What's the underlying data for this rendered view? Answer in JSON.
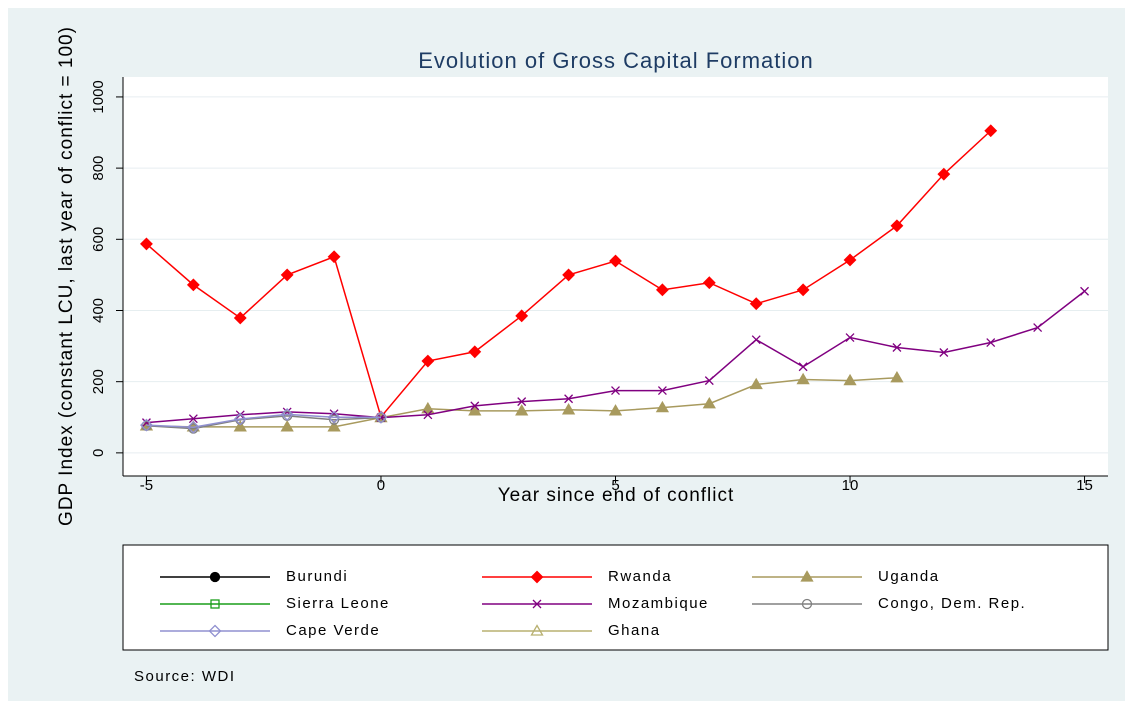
{
  "chart_data": {
    "type": "line",
    "title": "Evolution of Gross Capital Formation",
    "x_label": "Year since end of conflict",
    "y_label": "GDP Index (constant LCU, last year of conflict = 100)",
    "note": "Source: WDI",
    "x": [
      -5,
      -4,
      -3,
      -2,
      -1,
      0,
      1,
      2,
      3,
      4,
      5,
      6,
      7,
      8,
      9,
      10,
      11,
      12,
      13,
      14,
      15
    ],
    "xlim": [
      -5.5,
      15.5
    ],
    "xticks": [
      -5,
      0,
      5,
      10,
      15
    ],
    "ylim": [
      -65,
      1056
    ],
    "yticks": [
      0,
      200,
      400,
      600,
      800,
      1000
    ],
    "grid": true,
    "series": [
      {
        "name": "Burundi",
        "color": "#000000",
        "marker": "circle-filled",
        "values": [
          null,
          null,
          null,
          null,
          null,
          null,
          null,
          null,
          null,
          null,
          null,
          null,
          null,
          null,
          null,
          null,
          null,
          null,
          null,
          null,
          null
        ]
      },
      {
        "name": "Rwanda",
        "color": "#ff0000",
        "marker": "diamond-filled",
        "values": [
          587,
          472,
          379,
          500,
          551,
          101,
          258,
          284,
          385,
          500,
          539,
          458,
          478,
          419,
          458,
          542,
          638,
          783,
          905,
          null,
          null
        ]
      },
      {
        "name": "Uganda",
        "color": "#a89a5e",
        "marker": "triangle-filled",
        "values": [
          76,
          73,
          73,
          73,
          73,
          99,
          124,
          118,
          118,
          121,
          118,
          127,
          138,
          192,
          206,
          203,
          211,
          null,
          null,
          null,
          null
        ]
      },
      {
        "name": "Sierra Leone",
        "color": "#1a9e1a",
        "marker": "square-hollow",
        "values": [
          null,
          null,
          null,
          null,
          null,
          null,
          null,
          null,
          null,
          null,
          null,
          null,
          null,
          null,
          null,
          null,
          null,
          null,
          null,
          null,
          null
        ]
      },
      {
        "name": "Mozambique",
        "color": "#800080",
        "marker": "x",
        "values": [
          85,
          96,
          107,
          115,
          110,
          99,
          107,
          132,
          144,
          152,
          175,
          175,
          203,
          318,
          242,
          324,
          296,
          282,
          310,
          352,
          454
        ]
      },
      {
        "name": "Congo, Dem. Rep.",
        "color": "#808080",
        "marker": "circle-hollow",
        "values": [
          76,
          68,
          93,
          104,
          93,
          99,
          null,
          null,
          null,
          null,
          null,
          null,
          null,
          null,
          null,
          null,
          null,
          null,
          null,
          null,
          null
        ]
      },
      {
        "name": "Cape Verde",
        "color": "#9090d0",
        "marker": "diamond-hollow",
        "values": [
          78,
          72,
          95,
          108,
          100,
          100,
          null,
          null,
          null,
          null,
          null,
          null,
          null,
          null,
          null,
          null,
          null,
          null,
          null,
          null,
          null
        ]
      },
      {
        "name": "Ghana",
        "color": "#b8b070",
        "marker": "triangle-hollow",
        "values": [
          null,
          null,
          null,
          null,
          null,
          null,
          null,
          null,
          null,
          null,
          null,
          null,
          null,
          null,
          null,
          null,
          null,
          null,
          null,
          null,
          null
        ]
      }
    ]
  }
}
